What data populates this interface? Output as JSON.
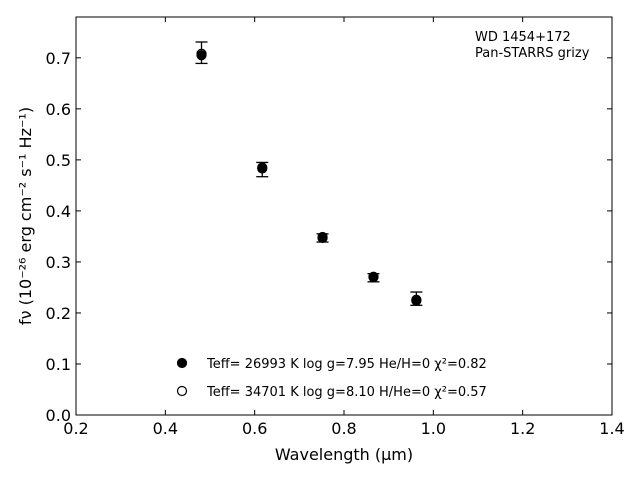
{
  "chart_data": {
    "type": "scatter",
    "title": "",
    "annotation_lines": [
      "WD 1454+172",
      "Pan-STARRS grizy"
    ],
    "xlabel": "Wavelength (μm)",
    "ylabel": "fν (10⁻²⁶ erg cm⁻² s⁻¹ Hz⁻¹)",
    "xlim": [
      0.2,
      1.4
    ],
    "ylim": [
      0.0,
      0.78
    ],
    "x_ticks": [
      0.2,
      0.4,
      0.6,
      0.8,
      1.0,
      1.2,
      1.4
    ],
    "x_tick_labels": [
      "0.2",
      "0.4",
      "0.6",
      "0.8",
      "1.0",
      "1.2",
      "1.4"
    ],
    "y_ticks": [
      0.0,
      0.1,
      0.2,
      0.3,
      0.4,
      0.5,
      0.6,
      0.7
    ],
    "y_tick_labels": [
      "0.0",
      "0.1",
      "0.2",
      "0.3",
      "0.4",
      "0.5",
      "0.6",
      "0.7"
    ],
    "grid": false,
    "legend_position": "lower-left",
    "observed": {
      "x": [
        0.481,
        0.617,
        0.752,
        0.866,
        0.962
      ],
      "y": [
        0.71,
        0.481,
        0.347,
        0.269,
        0.228
      ],
      "yerr": [
        0.021,
        0.014,
        0.008,
        0.008,
        0.013
      ]
    },
    "series": [
      {
        "name": "Teff= 26993 K  log g=7.95  He/H=0  χ²=0.82",
        "marker": "filled-circle",
        "x": [
          0.481,
          0.617,
          0.752,
          0.866,
          0.962
        ],
        "y": [
          0.705,
          0.485,
          0.349,
          0.271,
          0.224
        ]
      },
      {
        "name": "Teff= 34701 K  log g=8.10  H/He=0  χ²=0.57",
        "marker": "open-circle",
        "x": [
          0.481,
          0.617,
          0.752,
          0.866,
          0.962
        ],
        "y": [
          0.708,
          0.483,
          0.347,
          0.27,
          0.226
        ]
      }
    ]
  }
}
